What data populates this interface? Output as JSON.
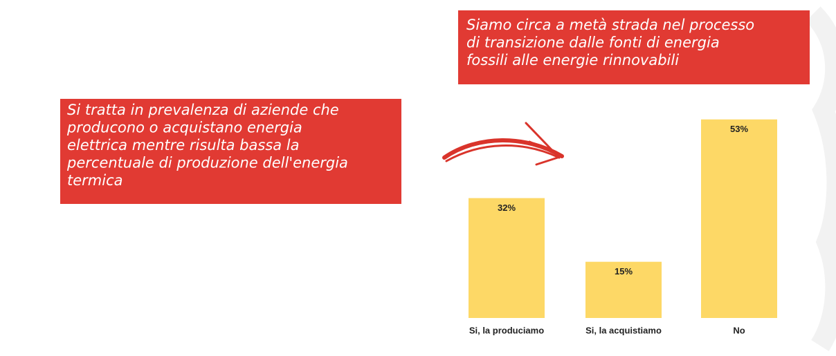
{
  "chart_data": {
    "type": "bar",
    "annotations": [
      [
        "Si tratta in prevalenza di aziende che",
        "producono o acquistano energia",
        "elettrica mentre risulta bassa la",
        "percentuale di produzione dell'energia",
        "termica"
      ],
      [
        "Siamo circa a metà strada nel processo",
        "di transizione dalle fonti di energia",
        "fossili alle energie rinnovabili"
      ]
    ],
    "categories": [
      "Si, la produciamo",
      "Si, la acquistiamo",
      "No"
    ],
    "values": [
      32,
      15,
      53
    ],
    "value_labels": [
      "32%",
      "15%",
      "53%"
    ],
    "color": "#fdd866"
  }
}
